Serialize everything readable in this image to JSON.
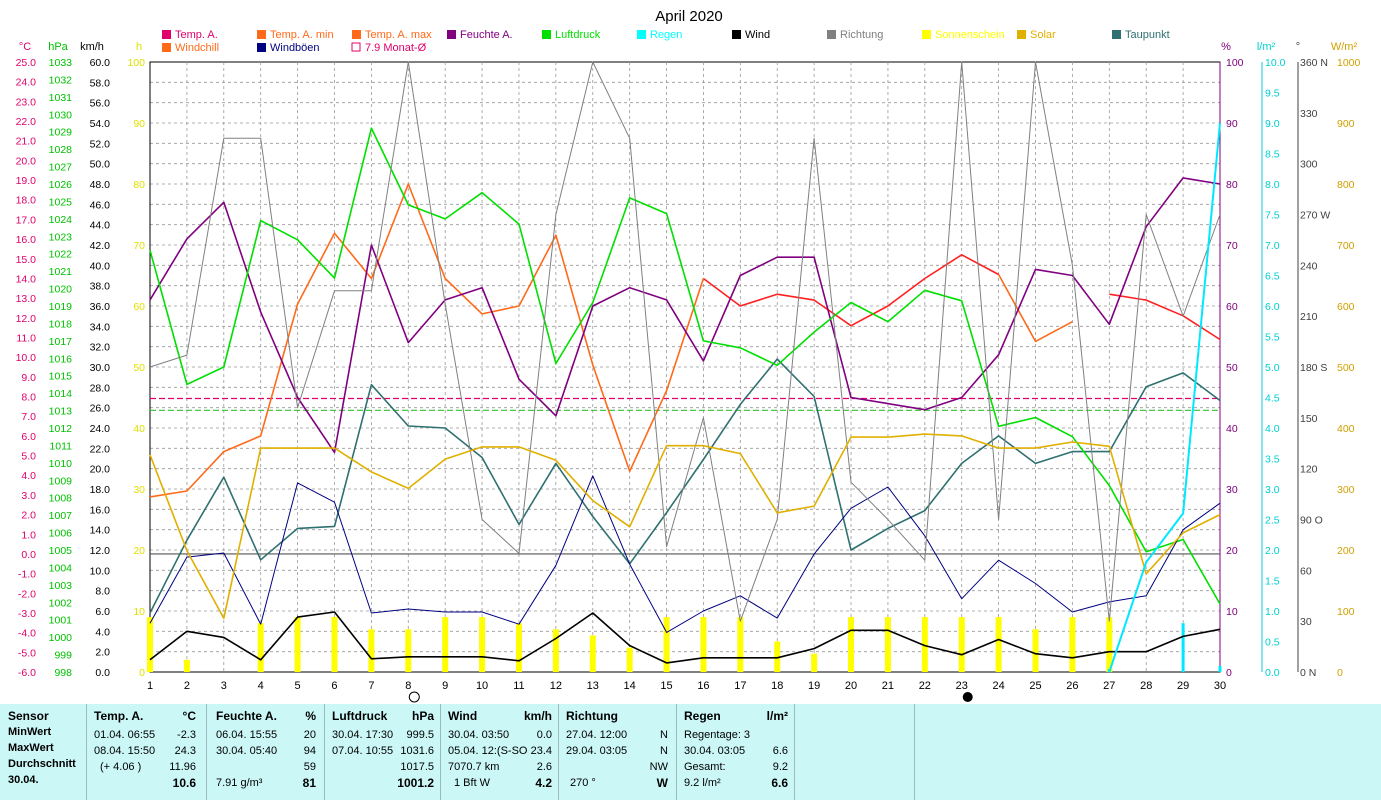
{
  "chart_data": {
    "type": "line",
    "title": "April 2020",
    "x": [
      1,
      2,
      3,
      4,
      5,
      6,
      7,
      8,
      9,
      10,
      11,
      12,
      13,
      14,
      15,
      16,
      17,
      18,
      19,
      20,
      21,
      22,
      23,
      24,
      25,
      26,
      27,
      28,
      29,
      30
    ],
    "legend": [
      {
        "name": "Temp. A.",
        "color": "#e0006c"
      },
      {
        "name": "Temp. A. min",
        "color": "#ff6a1a"
      },
      {
        "name": "Temp. A. max",
        "color": "#ff6a1a"
      },
      {
        "name": "Feuchte A.",
        "color": "#800080"
      },
      {
        "name": "Luftdruck",
        "color": "#00e000"
      },
      {
        "name": "Regen",
        "color": "#00ffff"
      },
      {
        "name": "Wind",
        "color": "#000000"
      },
      {
        "name": "Richtung",
        "color": "#808080"
      },
      {
        "name": "Sonnenschein",
        "color": "#ffff00"
      },
      {
        "name": "Solar",
        "color": "#e0b000"
      },
      {
        "name": "Taupunkt",
        "color": "#2f7070"
      },
      {
        "name": "Windchill",
        "color": "#ff6a1a"
      },
      {
        "name": "Windböen",
        "color": "#000080"
      },
      {
        "name": "7.9 Monat-Ø",
        "color": "#e0006c"
      }
    ],
    "axes": {
      "temp": {
        "label": "°C",
        "ticks": [
          "25.0",
          "24.0",
          "23.0",
          "22.0",
          "21.0",
          "20.0",
          "19.0",
          "18.0",
          "17.0",
          "16.0",
          "15.0",
          "14.0",
          "13.0",
          "12.0",
          "11.0",
          "10.0",
          "9.0",
          "8.0",
          "7.0",
          "6.0",
          "5.0",
          "4.0",
          "3.0",
          "2.0",
          "1.0",
          "0.0",
          "-1.0",
          "-2.0",
          "-3.0",
          "-4.0",
          "-5.0",
          "-6.0"
        ],
        "range": [
          -6,
          25
        ],
        "color": "#e0006c"
      },
      "pressure": {
        "label": "hPa",
        "ticks": [
          "1033",
          "1032",
          "1031",
          "1030",
          "1029",
          "1028",
          "1027",
          "1026",
          "1025",
          "1024",
          "1023",
          "1022",
          "1021",
          "1020",
          "1019",
          "1018",
          "1017",
          "1016",
          "1015",
          "1014",
          "1013",
          "1012",
          "1011",
          "1010",
          "1009",
          "1008",
          "1007",
          "1006",
          "1005",
          "1004",
          "1003",
          "1002",
          "1001",
          "1000",
          "999",
          "998"
        ],
        "range": [
          998,
          1033
        ],
        "color": "#00c000"
      },
      "wind": {
        "label": "km/h",
        "ticks": [
          "60.0",
          "58.0",
          "56.0",
          "54.0",
          "52.0",
          "50.0",
          "48.0",
          "46.0",
          "44.0",
          "42.0",
          "40.0",
          "38.0",
          "36.0",
          "34.0",
          "32.0",
          "30.0",
          "28.0",
          "26.0",
          "24.0",
          "22.0",
          "20.0",
          "18.0",
          "16.0",
          "14.0",
          "12.0",
          "10.0",
          "8.0",
          "6.0",
          "4.0",
          "2.0",
          "0.0"
        ],
        "range": [
          0,
          60
        ],
        "color": "#000000"
      },
      "sunshine": {
        "label": "h",
        "ticks": [
          "100",
          "90",
          "80",
          "70",
          "60",
          "50",
          "40",
          "30",
          "20",
          "10",
          "0"
        ],
        "range": [
          0,
          100
        ],
        "color": "#e0e000"
      },
      "humidity": {
        "label": "%",
        "ticks": [
          "100",
          "90",
          "80",
          "70",
          "60",
          "50",
          "40",
          "30",
          "20",
          "10",
          "0"
        ],
        "range": [
          0,
          100
        ],
        "color": "#800080"
      },
      "rain": {
        "label": "l/m²",
        "ticks": [
          "10.0",
          "9.5",
          "9.0",
          "8.5",
          "8.0",
          "7.5",
          "7.0",
          "6.5",
          "6.0",
          "5.5",
          "5.0",
          "4.5",
          "4.0",
          "3.5",
          "3.0",
          "2.5",
          "2.0",
          "1.5",
          "1.0",
          "0.5",
          "0.0"
        ],
        "range": [
          0,
          10
        ],
        "color": "#00d0d0"
      },
      "direction": {
        "label": "°",
        "ticks": [
          "360 N",
          "330",
          "300",
          "270 W",
          "240",
          "210",
          "180 S",
          "150",
          "120",
          "90  O",
          "60",
          "30",
          "0   N"
        ],
        "range": [
          0,
          360
        ],
        "color": "#404040"
      },
      "solar": {
        "label": "W/m²",
        "ticks": [
          "1000",
          "900",
          "800",
          "700",
          "600",
          "500",
          "400",
          "300",
          "200",
          "100",
          "0"
        ],
        "range": [
          0,
          1000
        ],
        "color": "#d0a000"
      }
    },
    "series": [
      {
        "name": "Temp. A.",
        "axis": "temp",
        "color": "#ff2020",
        "width": 1.6,
        "values": [
          null,
          null,
          null,
          null,
          null,
          null,
          null,
          null,
          null,
          null,
          null,
          null,
          null,
          null,
          null,
          14.0,
          12.6,
          13.2,
          12.9,
          11.6,
          12.6,
          14.0,
          15.2,
          14.2,
          null,
          null,
          13.2,
          12.9,
          12.1,
          10.9
        ]
      },
      {
        "name": "Temp. A. max",
        "axis": "temp",
        "color": "#ff6a1a",
        "width": 1.6,
        "values": [
          2.9,
          3.2,
          5.2,
          6.0,
          12.7,
          16.3,
          14.0,
          18.8,
          14.0,
          12.2,
          12.6,
          16.2,
          9.6,
          4.2,
          8.3,
          14.0,
          null,
          null,
          null,
          null,
          null,
          null,
          null,
          14.2,
          10.8,
          11.8,
          null,
          null,
          null,
          null
        ]
      },
      {
        "name": "Taupunkt",
        "axis": "temp",
        "color": "#2f7070",
        "width": 1.6,
        "values": [
          -3.0,
          0.7,
          3.9,
          -0.3,
          1.3,
          1.4,
          8.6,
          6.5,
          6.4,
          4.9,
          1.5,
          4.6,
          1.9,
          -0.5,
          2.1,
          4.8,
          7.6,
          9.9,
          8.0,
          0.2,
          1.3,
          2.2,
          4.6,
          6.0,
          4.6,
          5.2,
          5.2,
          8.5,
          9.2,
          7.8
        ]
      },
      {
        "name": "Feuchte A.",
        "axis": "humidity",
        "color": "#800080",
        "width": 1.6,
        "values": [
          61,
          71,
          77,
          59,
          45,
          36,
          70,
          54,
          61,
          63,
          48,
          42,
          60,
          63,
          61,
          51,
          65,
          68,
          68,
          45,
          44,
          43,
          45,
          52,
          66,
          65,
          57,
          73,
          81,
          80
        ]
      },
      {
        "name": "Luftdruck",
        "axis": "pressure",
        "color": "#00e000",
        "width": 1.6,
        "values": [
          1022.2,
          1014.5,
          1015.5,
          1023.9,
          1022.8,
          1020.6,
          1029.2,
          1024.8,
          1024.0,
          1025.5,
          1023.7,
          1015.7,
          1019.2,
          1025.2,
          1024.3,
          1017.0,
          1016.6,
          1015.6,
          1017.5,
          1019.2,
          1018.1,
          1019.9,
          1019.3,
          1012.1,
          1012.6,
          1011.5,
          1008.7,
          1004.9,
          1005.6,
          1001.9
        ]
      },
      {
        "name": "Wind",
        "axis": "wind",
        "color": "#000000",
        "width": 1.6,
        "values": [
          1.2,
          4.0,
          3.4,
          1.2,
          5.4,
          5.9,
          1.3,
          1.5,
          1.5,
          1.5,
          1.1,
          3.3,
          5.8,
          2.6,
          0.9,
          1.4,
          1.4,
          1.4,
          2.3,
          4.1,
          4.1,
          2.6,
          1.7,
          3.2,
          1.8,
          1.4,
          2.0,
          2.0,
          3.5,
          4.2
        ]
      },
      {
        "name": "Windböen",
        "axis": "wind",
        "color": "#000080",
        "width": 1,
        "values": [
          4.8,
          11.3,
          11.7,
          4.7,
          18.6,
          16.7,
          5.8,
          6.2,
          5.9,
          5.9,
          4.7,
          10.5,
          19.3,
          10.6,
          3.9,
          6.0,
          7.5,
          5.3,
          11.6,
          16.1,
          18.2,
          13.4,
          7.2,
          11.0,
          8.7,
          5.9,
          6.9,
          7.5,
          14.0,
          16.6
        ]
      },
      {
        "name": "Richtung",
        "axis": "direction",
        "color": "#808080",
        "width": 1,
        "values": [
          180,
          187,
          315,
          315,
          156,
          225,
          225,
          360,
          217,
          90,
          70,
          270,
          360,
          315,
          74,
          150,
          30,
          90,
          315,
          112,
          90,
          66,
          360,
          90,
          360,
          240,
          30,
          270,
          210,
          270
        ]
      },
      {
        "name": "Solar",
        "axis": "solar",
        "color": "#e0b000",
        "width": 1.6,
        "values": [
          356,
          199,
          88,
          367,
          367,
          367,
          328,
          301,
          349,
          369,
          369,
          347,
          281,
          238,
          371,
          371,
          358,
          261,
          272,
          385,
          385,
          390,
          387,
          367,
          367,
          377,
          370,
          161,
          228,
          258
        ]
      },
      {
        "name": "Regen",
        "axis": "rain",
        "color": "#00e8ff",
        "width": 2,
        "values": [
          null,
          null,
          null,
          null,
          null,
          null,
          null,
          null,
          null,
          null,
          null,
          null,
          null,
          null,
          null,
          null,
          null,
          null,
          null,
          null,
          null,
          null,
          null,
          null,
          null,
          null,
          0.0,
          1.8,
          2.6,
          9.0
        ]
      }
    ],
    "sunshine_bars": [
      9,
      2,
      0,
      8,
      9,
      9,
      7,
      7,
      9,
      9,
      8,
      7,
      6,
      4,
      9,
      9,
      9,
      5,
      3,
      9,
      9,
      9,
      9,
      9,
      7,
      9,
      9,
      0,
      0,
      0
    ],
    "rain_bars": [
      0,
      0,
      0,
      0,
      0,
      0,
      0,
      0,
      0,
      0,
      0,
      0,
      0,
      0,
      0,
      0,
      0,
      0,
      0,
      0,
      0,
      0,
      0,
      0,
      0,
      0,
      0.05,
      0,
      0.8,
      0.1
    ],
    "month_avg_temp": 7.9,
    "month_avg_line2": 7.3,
    "ref_line_temp": 0.0,
    "moon": [
      {
        "day": 8,
        "phase": "full"
      },
      {
        "day": 23,
        "phase": "new"
      }
    ],
    "grid": true
  },
  "summary": {
    "sensor": {
      "title": "Sensor",
      "rows": [
        "MinWert",
        "MaxWert",
        "Durchschnitt",
        "30.04."
      ]
    },
    "temp": {
      "title": "Temp. A.",
      "unit": "°C",
      "min_time": "01.04.  06:55",
      "min_val": "-2.3",
      "max_time": "08.04.  15:50",
      "max_val": "24.3",
      "avg_note": "(+ 4.06 )",
      "avg_val": "11.96",
      "today_val": "10.6"
    },
    "humidity": {
      "title": "Feuchte A.",
      "unit": "%",
      "min_time": "06.04.  15:55",
      "min_val": "20",
      "max_time": "30.04.  05:40",
      "max_val": "94",
      "avg_val": "59",
      "abs_hum": "7.91 g/m³",
      "today_val": "81"
    },
    "pressure": {
      "title": "Luftdruck",
      "unit": "hPa",
      "min_time": "30.04.  17:30",
      "min_val": "999.5",
      "max_time": "07.04.  10:55",
      "max_val": "1031.6",
      "avg_val": "1017.5",
      "today_val": "1001.2"
    },
    "wind": {
      "title": "Wind",
      "unit": "km/h",
      "min_time": "30.04.  03:50",
      "min_val": "0.0",
      "max_time": "05.04.  12:(S-SO",
      "max_val": "23.4",
      "avg_km": "7070.7 km",
      "avg_val": "2.6",
      "bft": "1 Bft W",
      "today_val": "4.2"
    },
    "direction": {
      "title": "Richtung",
      "min_time": "27.04.  12:00",
      "min_val": "N",
      "max_time": "29.04.  03:05",
      "max_val": "N",
      "avg_val": "NW",
      "today_deg": "270 °",
      "today_val": "W"
    },
    "rain": {
      "title": "Regen",
      "unit": "l/m²",
      "days": "Regentage: 3",
      "max_time": "30.04.  03:05",
      "max_val": "6.6",
      "total_label": "Gesamt:",
      "total_val": "9.2",
      "today_note": "9.2 l/m²",
      "today_val": "6.6"
    }
  }
}
